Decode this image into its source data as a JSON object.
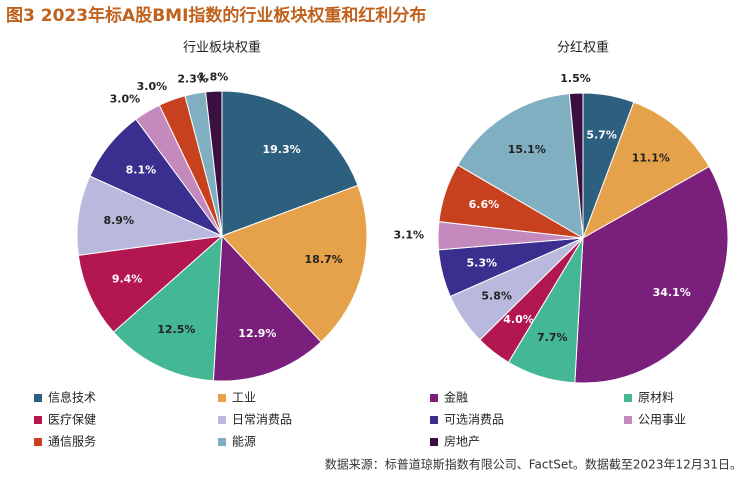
{
  "title": "图3  2023年标A股BMI指数的行业板块权重和红利分布",
  "chart_data": [
    {
      "type": "pie",
      "title": "行业板块权重",
      "categories": [
        "信息技术",
        "工业",
        "金融",
        "原材料",
        "医疗保健",
        "日常消费品",
        "可选消费品",
        "公用事业",
        "通信服务",
        "能源",
        "房地产"
      ],
      "values": [
        19.3,
        18.7,
        12.9,
        12.5,
        9.4,
        8.9,
        8.1,
        3.0,
        3.0,
        2.3,
        1.8
      ],
      "value_labels": [
        "19.3%",
        "18.7%",
        "12.9%",
        "12.5%",
        "9.4%",
        "8.9%",
        "8.1%",
        "3.0%",
        "3.0%",
        "2.3%",
        "1.8%"
      ],
      "colors": [
        "#2d5f7e",
        "#e6a24a",
        "#7a1f7b",
        "#44b895",
        "#b3174f",
        "#b9b9dd",
        "#3a2e8e",
        "#c48abd",
        "#c8411f",
        "#7fafc0",
        "#3a1040"
      ]
    },
    {
      "type": "pie",
      "title": "分红权重",
      "categories": [
        "信息技术",
        "工业",
        "金融",
        "原材料",
        "医疗保健",
        "日常消费品",
        "可选消费品",
        "公用事业",
        "通信服务",
        "能源",
        "房地产"
      ],
      "values": [
        5.7,
        11.1,
        34.1,
        7.7,
        4.0,
        5.8,
        5.3,
        3.1,
        6.6,
        15.1,
        1.5
      ],
      "value_labels": [
        "5.7%",
        "11.1%",
        "34.1%",
        "7.7%",
        "4.0%",
        "5.8%",
        "5.3%",
        "3.1%",
        "6.6%",
        "15.1%",
        "1.5%"
      ],
      "colors": [
        "#2d5f7e",
        "#e6a24a",
        "#7a1f7b",
        "#44b895",
        "#b3174f",
        "#b9b9dd",
        "#3a2e8e",
        "#c48abd",
        "#c8411f",
        "#7fafc0",
        "#3a1040"
      ]
    }
  ],
  "source": "数据来源：标普道琼斯指数有限公司、FactSet。数据截至2023年12月31日。"
}
